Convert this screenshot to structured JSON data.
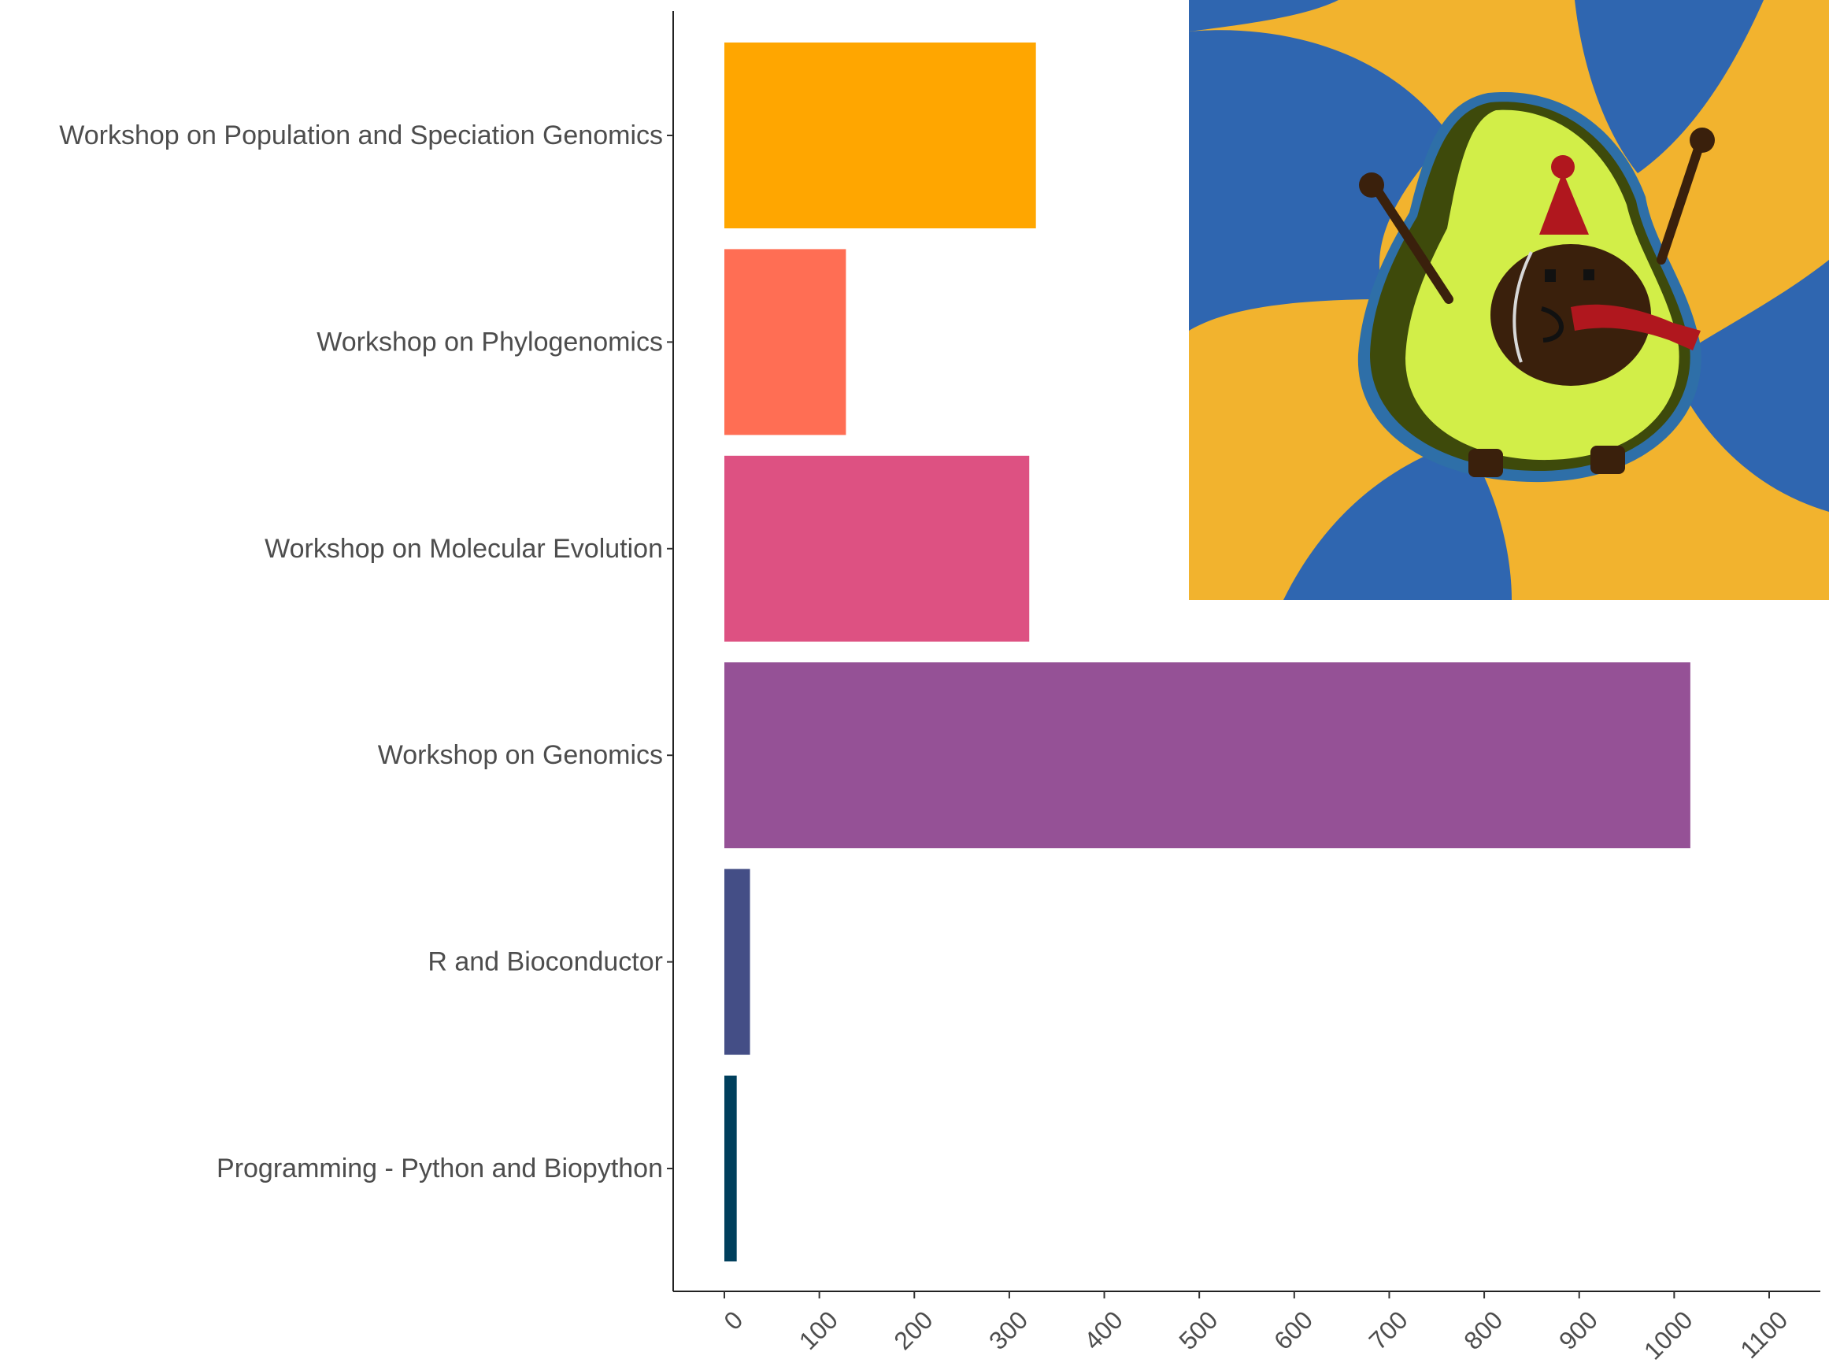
{
  "chart_data": {
    "type": "bar",
    "orientation": "horizontal",
    "categories": [
      "Workshop on Population and Speciation Genomics",
      "Workshop on Phylogenomics",
      "Workshop on Molecular Evolution",
      "Workshop on Genomics",
      "R and Bioconductor",
      "Programming - Python and Biopython"
    ],
    "values": [
      328,
      128,
      321,
      1017,
      27,
      13
    ],
    "colors": [
      "#FFA600",
      "#FF6E54",
      "#DD5182",
      "#955196",
      "#444E86",
      "#003F5C"
    ],
    "xlim": [
      0,
      1100
    ],
    "xticks": [
      "0",
      "100",
      "200",
      "300",
      "400",
      "500",
      "600",
      "700",
      "800",
      "900",
      "1000",
      "1100"
    ],
    "title": "",
    "xlabel": "",
    "ylabel": "",
    "grid": false,
    "legend": "none"
  },
  "illustration": {
    "name": "avocado-mascot",
    "colors": {
      "background_yellow": "#F2B32E",
      "background_blue": "#2F66B0",
      "flesh": "#D2EE48",
      "skin": "#3E4A0B",
      "pit": "#3A200C",
      "hat": "#B0171E",
      "scarf": "#B0171E"
    }
  }
}
